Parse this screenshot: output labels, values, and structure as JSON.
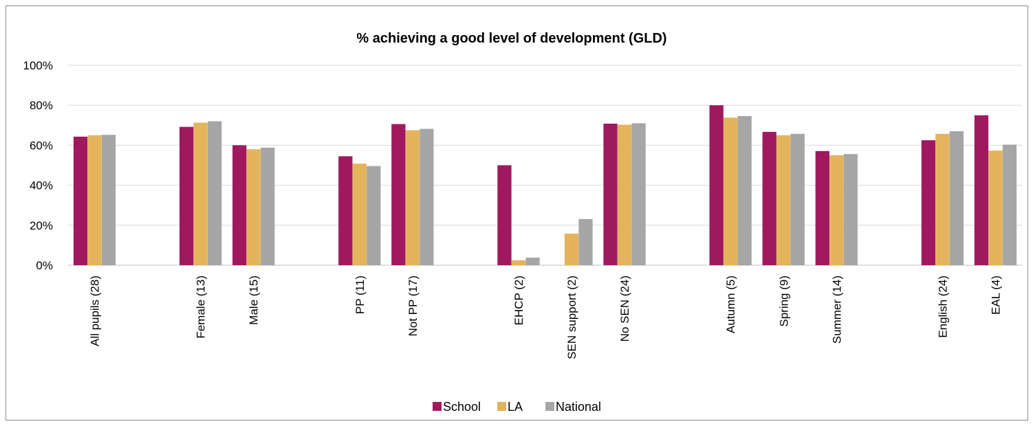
{
  "chart_data": {
    "type": "bar",
    "title": "% achieving a good level of development (GLD)",
    "xlabel": "",
    "ylabel": "",
    "ylim": [
      0,
      100
    ],
    "ytick_labels": [
      "0%",
      "20%",
      "40%",
      "60%",
      "80%",
      "100%"
    ],
    "grid": true,
    "legend_position": "bottom",
    "slots": [
      "All pupils (28)",
      "",
      "Female (13)",
      "Male (15)",
      "",
      "PP (11)",
      "Not PP (17)",
      "",
      "EHCP (2)",
      "SEN support (2)",
      "No SEN (24)",
      "",
      "Autumn (5)",
      "Spring (9)",
      "Summer (14)",
      "",
      "English (24)",
      "EAL (4)"
    ],
    "series": [
      {
        "name": "School",
        "color": "#A0195F",
        "values": [
          64.3,
          null,
          69.2,
          60.0,
          null,
          54.5,
          70.6,
          null,
          50.0,
          0,
          70.8,
          null,
          80.0,
          66.7,
          57.1,
          null,
          62.5,
          75.0
        ]
      },
      {
        "name": "LA",
        "color": "#E3B45C",
        "values": [
          65.0,
          null,
          71.3,
          58.0,
          null,
          50.8,
          67.5,
          null,
          2.5,
          15.8,
          70.3,
          null,
          73.8,
          65.0,
          55.0,
          null,
          65.7,
          57.3
        ]
      },
      {
        "name": "National",
        "color": "#A6A6A6",
        "values": [
          65.2,
          null,
          72.0,
          58.8,
          null,
          49.6,
          68.2,
          null,
          3.8,
          23.1,
          71.0,
          null,
          74.6,
          65.7,
          55.6,
          null,
          67.0,
          60.3
        ]
      }
    ]
  }
}
